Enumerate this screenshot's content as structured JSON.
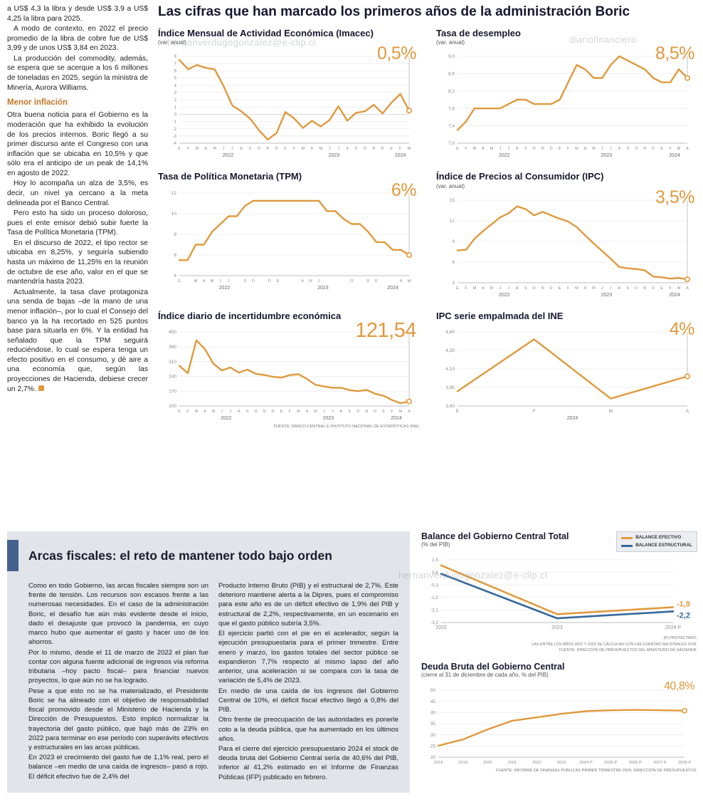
{
  "watermarks": {
    "email_top": "hernanverdugogonzalez@e-clip.cl",
    "site": "diariofinanciero",
    "email_bottom": "hernanverdugogonzalez@e-clip.cl"
  },
  "colors": {
    "accent_orange": "#e0993c",
    "accent_blue": "#36699c"
  },
  "main_title": "Las cifras que han marcado los primeros años de la administración Boric",
  "article": {
    "paras_before": [
      "a US$ 4,3 la libra y desde US$ 3,9 a US$ 4,25 la libra para 2025.",
      "A modo de contexto, en 2022 el precio promedio de la libra de cobre fue de US$ 3,99 y de unos US$ 3,84 en 2023.",
      "La producción del commodity, además, se espera que se acerque a los 6 millones de toneladas en 2025, según la ministra de Minería, Aurora Williams."
    ],
    "heading": "Menor inflación",
    "paras_after": [
      "Otra buena noticia para el Gobierno es la moderación que ha exhibido la evolución de los precios internos. Boric llegó a su primer discurso ante el Congreso con una inflación que se ubicaba en 10,5% y que sólo era el anticipo de un peak de 14,1% en agosto de 2022.",
      "Hoy lo acompaña un alza de 3,5%, es decir, un nivel ya cercano a la meta delineada por el Banco Central.",
      "Pero esto ha sido un proceso doloroso, pues el ente emisor debió subir fuerte la Tasa de Política Monetaria (TPM).",
      "En el discurso de 2022, el tipo rector se ubicaba en 8,25%, y seguiría subiendo hasta un máximo de 11,25% en la reunión de octubre de ese año, valor en el que se mantendría hasta 2023.",
      "Actualmente, la tasa clave protagoniza una senda de bajas –de la mano de una menor inflación–, por lo cual el Consejo del banco ya la ha recortado en 525 puntos base para situarla en 6%. Y la entidad ha señalado que la TPM seguirá reduciéndose, lo cual se espera tenga un efecto positivo en el consumo, y dé aire a una economía que, según las proyecciones de Hacienda, debiese crecer un 2,7%."
    ]
  },
  "fiscal": {
    "title": "Arcas fiscales: el reto de mantener todo bajo orden",
    "col1": [
      "Como en todo Gobierno, las arcas fiscales siempre son un frente de tensión. Los recursos son escasos frente a las numerosas necesidades. En el caso de la administración Boric, el desafío fue aún más evidente desde el inicio, dado el desajuste que provocó la pandemia, en cuyo marco hubo que aumentar el gasto y hacer uso de los ahorros.",
      "Por lo mismo, desde el 11 de marzo de 2022 el plan fue contar con alguna fuente adicional de ingresos vía reforma tributaria –hoy pacto fiscal– para financiar nuevos proyectos, lo que aún no se ha logrado.",
      "Pese a que esto no se ha materializado, el Presidente Boric se ha alineado con el objetivo de responsabilidad fiscal promovido desde el Ministerio de Hacienda y la Dirección de Presupuestos. Esto implicó normalizar la trayectoria del gasto público, que bajó más de 23% en 2022 para terminar en ese período con superávits efectivos y estructurales en las arcas públicas.",
      "En 2023 el crecimiento del gasto fue de 1,1% real, pero el balance –en medio de una caída de ingresos– pasó a rojo. El déficit efectivo fue de 2,4% del"
    ],
    "col2": [
      "Producto Interno Bruto (PIB) y el estructural de 2,7%. Este deterioro mantiene alerta a la Dipres, pues el compromiso para este año es de un déficit efectivo de 1,9% del PIB y estructural de 2,2%, respectivamente, en un escenario en que el gasto público subiría 3,5%.",
      "El ejercicio partió con el pie en el acelerador, según la ejecución presupuestaria para el primer trimestre. Entre enero y marzo, los gastos totales del sector público se expandieron 7,7% respecto al mismo lapso del año anterior, una aceleración si se compara con la tasa de variación de 5,4% de 2023.",
      "En medio de una caída de los ingresos del Gobierno Central de 10%, el déficit fiscal efectivo llegó a 0,8% del PIB.",
      "Otro frente de preocupación de las autoridades es ponerle coto a la deuda pública, que ha aumentado en los últimos años.",
      "Para el cierre del ejercicio presupuestario 2024 el stock de deuda bruta del Gobierno Central sería de 40,6% del PIB, inferior al 41,2% estimado en el Informe de Finanzas Públicas (IFP) publicado en febrero."
    ]
  },
  "chart_data": {
    "imacec": {
      "type": "line",
      "title": "Índice Mensual de Actividad Económica (Imacec)",
      "subtitle": "(var. anual)",
      "highlight": "0,5%",
      "ylim": [
        -4,
        8
      ],
      "ytick_values": [
        8,
        7,
        6,
        5,
        4,
        3,
        2,
        1,
        0,
        -1,
        -2,
        -3,
        -4
      ],
      "ytick_labels": [
        "8",
        "7",
        "6",
        "5",
        "4",
        "3",
        "2",
        "1",
        "0",
        "-1",
        "-2",
        "-3",
        "-4"
      ],
      "fs_y": 6,
      "xtick_labels": [
        "E",
        "F",
        "M",
        "A",
        "M",
        "J",
        "J",
        "A",
        "S",
        "O",
        "N",
        "D",
        "E",
        "F",
        "M",
        "A",
        "M",
        "J",
        "J",
        "A",
        "S",
        "O",
        "N",
        "D",
        "E",
        "F",
        "M"
      ],
      "year_labels": [
        {
          "label": "2022",
          "start": 0,
          "end": 11
        },
        {
          "label": "2023",
          "start": 12,
          "end": 23
        },
        {
          "label": "2024",
          "start": 24,
          "end": 26
        }
      ],
      "series": [
        {
          "name": "Imacec",
          "color": "#e0993c",
          "values": [
            7.5,
            6.2,
            6.8,
            6.4,
            6.2,
            3.9,
            1.2,
            0.4,
            -0.6,
            -2.2,
            -3.5,
            -2.6,
            0.3,
            -0.6,
            -1.9,
            -0.9,
            -1.7,
            -0.8,
            1.1,
            -0.9,
            0.2,
            0.4,
            1.3,
            0.1,
            1.6,
            2.8,
            0.5
          ]
        }
      ]
    },
    "desempleo": {
      "type": "line",
      "title": "Tasa de desempleo",
      "subtitle": "(var. anual)",
      "highlight": "8,5%",
      "ylim": [
        7.0,
        9.0
      ],
      "ytick_values": [
        9.0,
        8.6,
        8.2,
        7.8,
        7.4,
        7.0
      ],
      "ytick_labels": [
        "9,0",
        "8,6",
        "8,2",
        "7,8",
        "7,4",
        "7,0"
      ],
      "xtick_labels": [
        "E",
        "F",
        "M",
        "A",
        "M",
        "J",
        "J",
        "A",
        "S",
        "O",
        "N",
        "D",
        "E",
        "F",
        "M",
        "A",
        "M",
        "J",
        "J",
        "A",
        "S",
        "O",
        "N",
        "D",
        "E",
        "F",
        "M",
        "A"
      ],
      "year_labels": [
        {
          "label": "2022",
          "start": 0,
          "end": 11
        },
        {
          "label": "2023",
          "start": 12,
          "end": 23
        },
        {
          "label": "2024",
          "start": 24,
          "end": 27
        }
      ],
      "series": [
        {
          "name": "Desempleo",
          "color": "#e0993c",
          "values": [
            7.3,
            7.5,
            7.8,
            7.8,
            7.8,
            7.8,
            7.9,
            8.0,
            8.0,
            7.9,
            7.9,
            7.9,
            8.0,
            8.4,
            8.8,
            8.7,
            8.5,
            8.5,
            8.8,
            9.0,
            8.9,
            8.8,
            8.7,
            8.5,
            8.4,
            8.4,
            8.7,
            8.5
          ]
        }
      ]
    },
    "tpm": {
      "type": "line",
      "title": "Tasa de Política Monetaria (TPM)",
      "highlight": "6%",
      "ylim": [
        4,
        12
      ],
      "ytick_values": [
        12,
        10,
        8,
        6,
        4
      ],
      "ytick_labels": [
        "12",
        "10",
        "8",
        "6",
        "4"
      ],
      "xtick_labels": [
        "E",
        "",
        "M",
        "A",
        "M",
        "J",
        "J",
        "",
        "S",
        "O",
        "",
        "D",
        "E",
        "",
        "",
        "A",
        "M",
        "J",
        "",
        "",
        "",
        "O",
        "",
        "D",
        "E",
        "",
        "",
        "A",
        "M"
      ],
      "year_labels": [
        {
          "label": "2022",
          "start": 0,
          "end": 11
        },
        {
          "label": "2023",
          "start": 12,
          "end": 23
        },
        {
          "label": "2024",
          "start": 24,
          "end": 28
        }
      ],
      "series": [
        {
          "name": "TPM",
          "color": "#e0993c",
          "values": [
            5.5,
            5.5,
            7.0,
            7.0,
            8.25,
            9.0,
            9.75,
            9.75,
            10.75,
            11.25,
            11.25,
            11.25,
            11.25,
            11.25,
            11.25,
            11.25,
            11.25,
            11.25,
            10.25,
            10.25,
            9.5,
            9.0,
            9.0,
            8.25,
            7.25,
            7.25,
            6.5,
            6.5,
            6.0
          ]
        }
      ]
    },
    "ipc": {
      "type": "line",
      "title": "Índice de Precios al Consumidor (IPC)",
      "subtitle": "(var. anual)",
      "highlight": "3,5%",
      "ylim": [
        3,
        15
      ],
      "ytick_values": [
        15,
        12,
        9,
        6,
        3
      ],
      "ytick_labels": [
        "15",
        "12",
        "9",
        "6",
        "3"
      ],
      "xtick_labels": [
        "E",
        "F",
        "M",
        "A",
        "M",
        "J",
        "J",
        "A",
        "S",
        "O",
        "N",
        "D",
        "E",
        "F",
        "M",
        "A",
        "M",
        "J",
        "J",
        "A",
        "S",
        "O",
        "N",
        "D",
        "E",
        "F",
        "M",
        "A"
      ],
      "year_labels": [
        {
          "label": "2022",
          "start": 0,
          "end": 11
        },
        {
          "label": "2023",
          "start": 12,
          "end": 23
        },
        {
          "label": "2024",
          "start": 24,
          "end": 27
        }
      ],
      "series": [
        {
          "name": "IPC",
          "color": "#e0993c",
          "values": [
            7.7,
            7.8,
            9.4,
            10.5,
            11.5,
            12.5,
            13.1,
            14.1,
            13.7,
            12.8,
            13.3,
            12.8,
            12.3,
            11.9,
            11.1,
            9.9,
            8.7,
            7.6,
            6.5,
            5.3,
            5.1,
            5.0,
            4.8,
            3.9,
            3.8,
            3.6,
            3.7,
            3.5
          ]
        }
      ]
    },
    "incertidumbre": {
      "type": "line",
      "title": "Índice diario de incertidumbre económica",
      "highlight": "121,54",
      "ylim": [
        100,
        450
      ],
      "ytick_values": [
        450,
        380,
        310,
        240,
        170,
        100
      ],
      "ytick_labels": [
        "450",
        "380",
        "310",
        "240",
        "170",
        "100"
      ],
      "xtick_labels": [
        "E",
        "F",
        "M",
        "A",
        "M",
        "J",
        "J",
        "A",
        "S",
        "O",
        "N",
        "D",
        "E",
        "F",
        "M",
        "A",
        "M",
        "J",
        "J",
        "A",
        "S",
        "O",
        "N",
        "D",
        "E",
        "F",
        "M",
        "A"
      ],
      "year_labels": [
        {
          "label": "2022",
          "start": 0,
          "end": 11
        },
        {
          "label": "2023",
          "start": 12,
          "end": 23
        },
        {
          "label": "2024",
          "start": 24,
          "end": 27
        }
      ],
      "series": [
        {
          "name": "Incertidumbre",
          "color": "#e0993c",
          "values": [
            290,
            255,
            410,
            370,
            300,
            268,
            282,
            258,
            272,
            252,
            246,
            238,
            234,
            246,
            250,
            228,
            200,
            193,
            186,
            186,
            175,
            170,
            176,
            158,
            148,
            128,
            113,
            121.54
          ]
        }
      ],
      "source": "FUENTE: BANCO CENTRAL E INSTITUTO NACIONAL DE ESTADÍSTICAS (INE)"
    },
    "ipc_ine": {
      "type": "line",
      "title": "IPC serie empalmada del INE",
      "highlight": "4%",
      "ylim": [
        3.6,
        4.6
      ],
      "ytick_values": [
        4.6,
        4.35,
        4.1,
        3.85,
        3.6
      ],
      "ytick_labels": [
        "4,60",
        "4,35",
        "4,10",
        "3,85",
        "3,60"
      ],
      "fs_x": 6.5,
      "xtick_labels": [
        "E",
        "F",
        "M",
        "A"
      ],
      "year_labels": [
        {
          "label": "2024",
          "start": 0,
          "end": 3
        }
      ],
      "series": [
        {
          "name": "IPC empalmado",
          "color": "#e0993c",
          "values": [
            3.8,
            4.5,
            3.7,
            4.0
          ]
        }
      ]
    },
    "balance": {
      "type": "line",
      "title": "Balance del Gobierno Central Total",
      "subtitle": "(% del PIB)",
      "legend": [
        "BALANCE EFECTIVO",
        "BALANCE ESTRUCTURAL"
      ],
      "ylim": [
        -3.0,
        1.5
      ],
      "ytick_values": [
        1.5,
        0.6,
        -0.3,
        -1.2,
        -2.1,
        -3.0
      ],
      "ytick_labels": [
        "1,5",
        "0,6",
        "-0,3",
        "-1,2",
        "-2,1",
        "-3,0"
      ],
      "fs_x": 7,
      "fs_y": 6.5,
      "xtick_labels": [
        "2022",
        "2023",
        "2024 P"
      ],
      "margins": {
        "l": 28,
        "r": 34,
        "t": 8,
        "b": 16
      },
      "marker": false,
      "guide": false,
      "series": [
        {
          "name": "BALANCE EFECTIVO",
          "color": "#e0993c",
          "width": 2.6,
          "values": [
            1.1,
            -2.4,
            -1.9
          ]
        },
        {
          "name": "BALANCE ESTRUCTURAL",
          "color": "#36699c",
          "width": 2.6,
          "values": [
            0.5,
            -2.7,
            -2.2
          ]
        }
      ],
      "end_labels": [
        {
          "text": "-1,9",
          "dy": -1
        },
        {
          "text": "-2,2",
          "dy": 9
        }
      ],
      "notes": [
        "(P) PROYECTADO.",
        "LAS ENTRE LOS AÑOS 2021 Y 2023 SE CALCULAN  CON LAS CUENTAS NACIONALES 2018.",
        "FUENTE: DIRECCIÓN DE PRESUPUESTOS DEL MINISTERIO DE HACIENDA."
      ]
    },
    "deuda": {
      "type": "line",
      "title": "Deuda Bruta del Gobierno Central",
      "subtitle": "(cierre al 31 de diciembre de cada año, % del PIB)",
      "highlight": "40,8%",
      "ylim": [
        20,
        50
      ],
      "ytick_values": [
        50,
        45,
        40,
        35,
        30,
        25,
        20
      ],
      "ytick_labels": [
        "50",
        "45",
        "40",
        "35",
        "30",
        "25",
        "20"
      ],
      "fs_x": 5.8,
      "xtick_labels": [
        "2018",
        "2019",
        "2020",
        "2021",
        "2022",
        "2023",
        "2024 P",
        "2025 P",
        "2026 P",
        "2027 P",
        "2028 P"
      ],
      "margins": {
        "l": 24,
        "r": 18,
        "t": 14,
        "b": 14
      },
      "guide": false,
      "series": [
        {
          "name": "Deuda bruta",
          "color": "#e0993c",
          "values": [
            25.1,
            27.9,
            32.4,
            36.3,
            37.8,
            39.4,
            40.6,
            41.0,
            41.2,
            41.0,
            40.8
          ]
        }
      ],
      "source": "FUENTE: INFORME DE FINANZAS PÚBLICAS PRIMER TRIMESTRE 2024, DIRECCIÓN DE PRESUPUESTOS."
    }
  }
}
